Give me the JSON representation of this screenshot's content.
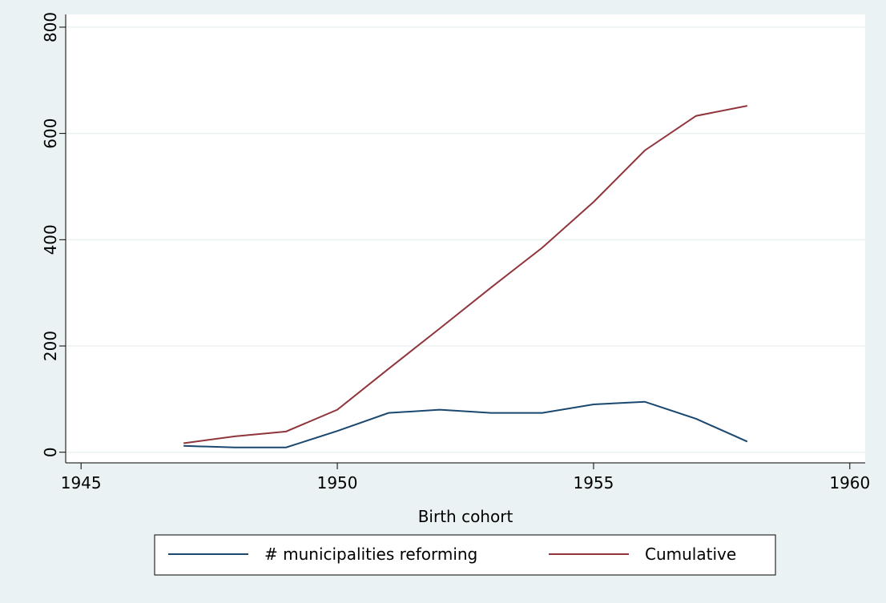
{
  "chart_data": {
    "type": "line",
    "x_label": "Birth cohort",
    "x": [
      1947,
      1948,
      1949,
      1950,
      1951,
      1952,
      1953,
      1954,
      1955,
      1956,
      1957,
      1958
    ],
    "series": [
      {
        "name": "# municipalities reforming",
        "color": "#1a476f",
        "values": [
          12,
          9,
          9,
          40,
          74,
          80,
          74,
          74,
          90,
          95,
          63,
          20
        ]
      },
      {
        "name": "Cumulative",
        "color": "#90353b",
        "values": [
          17,
          30,
          39,
          80,
          157,
          233,
          310,
          385,
          471,
          568,
          633,
          652
        ]
      }
    ],
    "xlim": [
      1944.7,
      1960.3
    ],
    "xticks": [
      1945,
      1950,
      1955,
      1960
    ],
    "ylim": [
      -20,
      824
    ],
    "yticks": [
      0,
      200,
      400,
      600,
      800
    ],
    "grid": true
  }
}
